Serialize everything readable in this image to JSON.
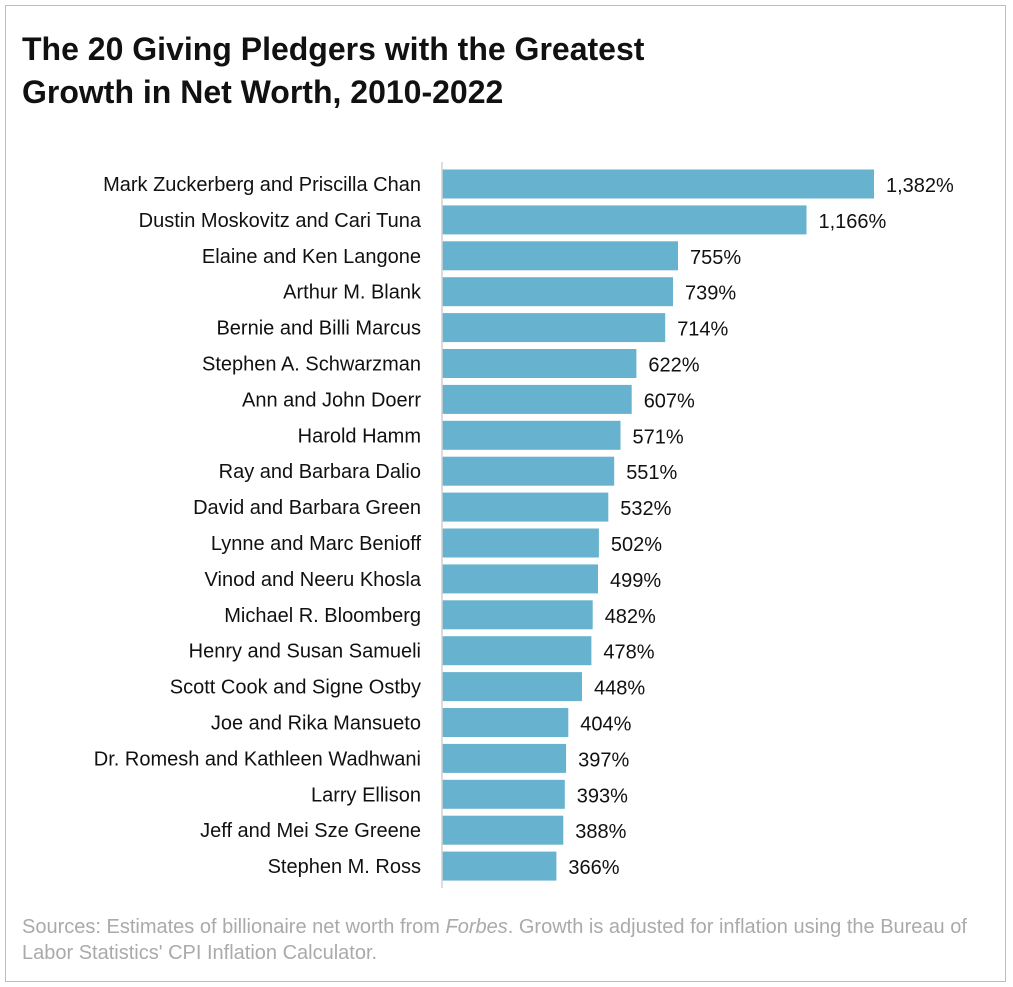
{
  "colors": {
    "bar": "#67b3cf",
    "axis": "#d0d0d0",
    "text": "#111111",
    "source_text": "#aaaaaa"
  },
  "title_lines": [
    "The 20 Giving Pledgers with the Greatest",
    "Growth in Net Worth, 2010-2022"
  ],
  "sources": {
    "prefix": "Sources: Estimates of billionaire net worth from ",
    "italic": "Forbes",
    "suffix": ". Growth is adjusted for inflation using the Bureau of Labor Statistics' CPI Inflation Calculator."
  },
  "chart_data": {
    "type": "bar",
    "orientation": "horizontal",
    "title": "The 20 Giving Pledgers with the Greatest Growth in Net Worth, 2010-2022",
    "xlabel": "",
    "ylabel": "",
    "unit": "%",
    "grid": false,
    "legend": "none",
    "categories": [
      "Mark Zuckerberg and Priscilla Chan",
      "Dustin Moskovitz and Cari Tuna",
      "Elaine and Ken Langone",
      "Arthur M. Blank",
      "Bernie and Billi Marcus",
      "Stephen A. Schwarzman",
      "Ann and John Doerr",
      "Harold Hamm",
      "Ray and Barbara Dalio",
      "David and Barbara Green",
      "Lynne and Marc Benioff",
      "Vinod and Neeru Khosla",
      "Michael R. Bloomberg",
      "Henry and Susan Samueli",
      "Scott Cook and Signe Ostby",
      "Joe and Rika Mansueto",
      "Dr. Romesh and Kathleen Wadhwani",
      "Larry Ellison",
      "Jeff and Mei Sze Greene",
      "Stephen M. Ross"
    ],
    "values": [
      1382,
      1166,
      755,
      739,
      714,
      622,
      607,
      571,
      551,
      532,
      502,
      499,
      482,
      478,
      448,
      404,
      397,
      393,
      388,
      366
    ],
    "data_labels": [
      "1,382%",
      "1,166%",
      "755%",
      "739%",
      "714%",
      "622%",
      "607%",
      "571%",
      "551%",
      "532%",
      "502%",
      "499%",
      "482%",
      "478%",
      "448%",
      "404%",
      "397%",
      "393%",
      "388%",
      "366%"
    ],
    "xlim": [
      0,
      1382
    ]
  }
}
